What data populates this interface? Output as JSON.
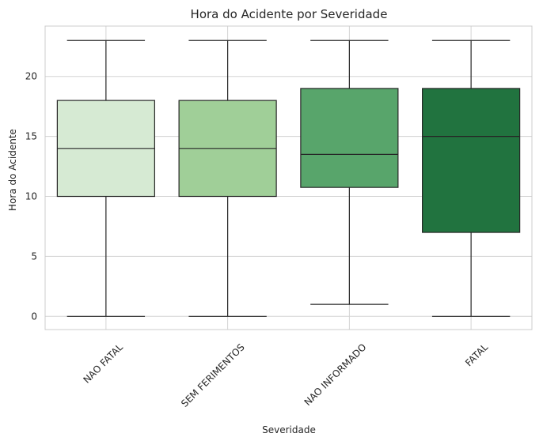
{
  "chart_data": {
    "type": "box",
    "title": "Hora do Acidente por Severidade",
    "xlabel": "Severidade",
    "ylabel": "Hora do Acidente",
    "ylim": [
      -1.1,
      24.2
    ],
    "yticks": [
      0,
      5,
      10,
      15,
      20
    ],
    "grid": true,
    "categories": [
      "NAO FATAL",
      "SEM FERIMENTOS",
      "NAO INFORMADO",
      "FATAL"
    ],
    "boxes": [
      {
        "category": "NAO FATAL",
        "whisker_low": 0,
        "q1": 10,
        "median": 14,
        "q3": 18,
        "whisker_high": 23,
        "color": "#d6ead3"
      },
      {
        "category": "SEM FERIMENTOS",
        "whisker_low": 0,
        "q1": 10,
        "median": 14,
        "q3": 18,
        "whisker_high": 23,
        "color": "#a0cf98"
      },
      {
        "category": "NAO INFORMADO",
        "whisker_low": 1,
        "q1": 10.75,
        "median": 13.5,
        "q3": 19,
        "whisker_high": 23,
        "color": "#58a56b"
      },
      {
        "category": "FATAL",
        "whisker_low": 0,
        "q1": 7,
        "median": 15,
        "q3": 19,
        "whisker_high": 23,
        "color": "#21733f"
      }
    ]
  }
}
